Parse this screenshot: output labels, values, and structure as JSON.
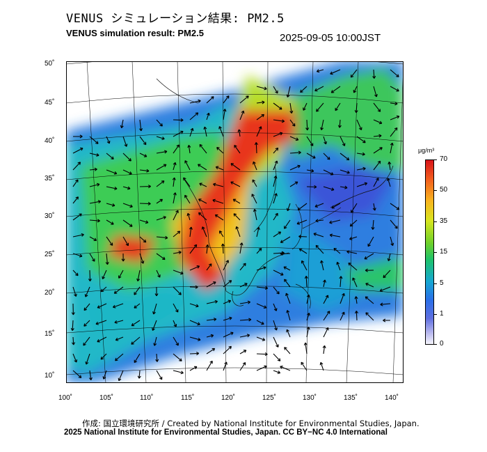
{
  "header": {
    "title_ja": "VENUS シミュレーション結果: PM2.5",
    "title_en": "VENUS simulation result: PM2.5",
    "timestamp": "2025-09-05 10:00JST"
  },
  "map": {
    "lat_labels": [
      "50˚",
      "45˚",
      "40˚",
      "35˚",
      "30˚",
      "25˚",
      "20˚",
      "15˚",
      "10˚"
    ],
    "lon_labels": [
      "100˚",
      "105˚",
      "110˚",
      "115˚",
      "120˚",
      "125˚",
      "130˚",
      "135˚",
      "140˚"
    ]
  },
  "colorbar": {
    "unit": "μg/m³",
    "ticks": [
      "70",
      "50",
      "35",
      "15",
      "5",
      "1",
      "0"
    ],
    "colors": [
      "#d8141a",
      "#f9b41f",
      "#6fd12a",
      "#16a7d2",
      "#2a6fe8",
      "#b9b9ee",
      "#f4f4fb"
    ]
  },
  "footer": {
    "credit_line1": "作成: 国立環境研究所 / Created by National Institute for Environmental Studies, Japan.",
    "credit_line2": "2025 National Institute for Environmental Studies, Japan. CC BY−NC 4.0 International"
  }
}
